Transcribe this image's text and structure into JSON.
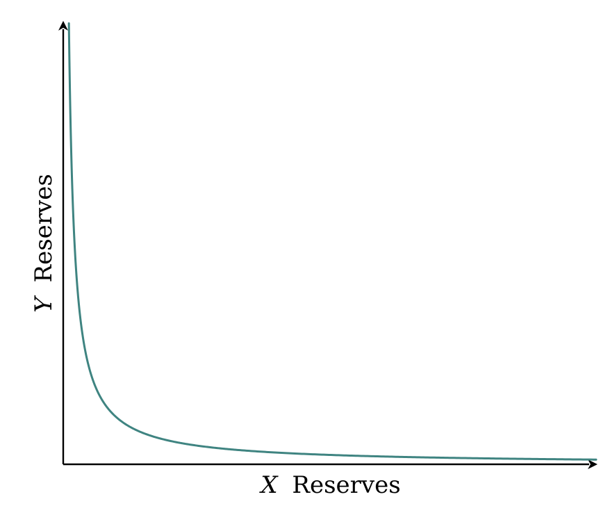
{
  "chart_data": {
    "type": "line",
    "title": "",
    "xlabel_var": "X",
    "xlabel_text": "Reserves",
    "ylabel_var": "Y",
    "ylabel_text": "Reserves",
    "ticks_shown": false,
    "grid": false,
    "legend": "none",
    "function": "y = k / x",
    "k": 1,
    "xlim": [
      0,
      10
    ],
    "ylim": [
      0,
      10
    ],
    "series": [
      {
        "name": "",
        "color": "#3f8481",
        "x_range": [
          0.1064,
          10
        ],
        "x": [
          0.1064,
          0.12,
          0.14,
          0.16,
          0.18,
          0.2,
          0.25,
          0.3,
          0.35,
          0.4,
          0.5,
          0.6,
          0.7,
          0.8,
          1.0,
          1.2,
          1.5,
          2.0,
          2.5,
          3.0,
          4.0,
          5.0,
          6.0,
          7.0,
          8.0,
          9.0,
          10.0
        ],
        "y": [
          9.4,
          8.333,
          7.143,
          6.25,
          5.556,
          5.0,
          4.0,
          3.333,
          2.857,
          2.5,
          2.0,
          1.667,
          1.429,
          1.25,
          1.0,
          0.833,
          0.667,
          0.5,
          0.4,
          0.333,
          0.25,
          0.2,
          0.167,
          0.143,
          0.125,
          0.111,
          0.1
        ]
      }
    ]
  }
}
